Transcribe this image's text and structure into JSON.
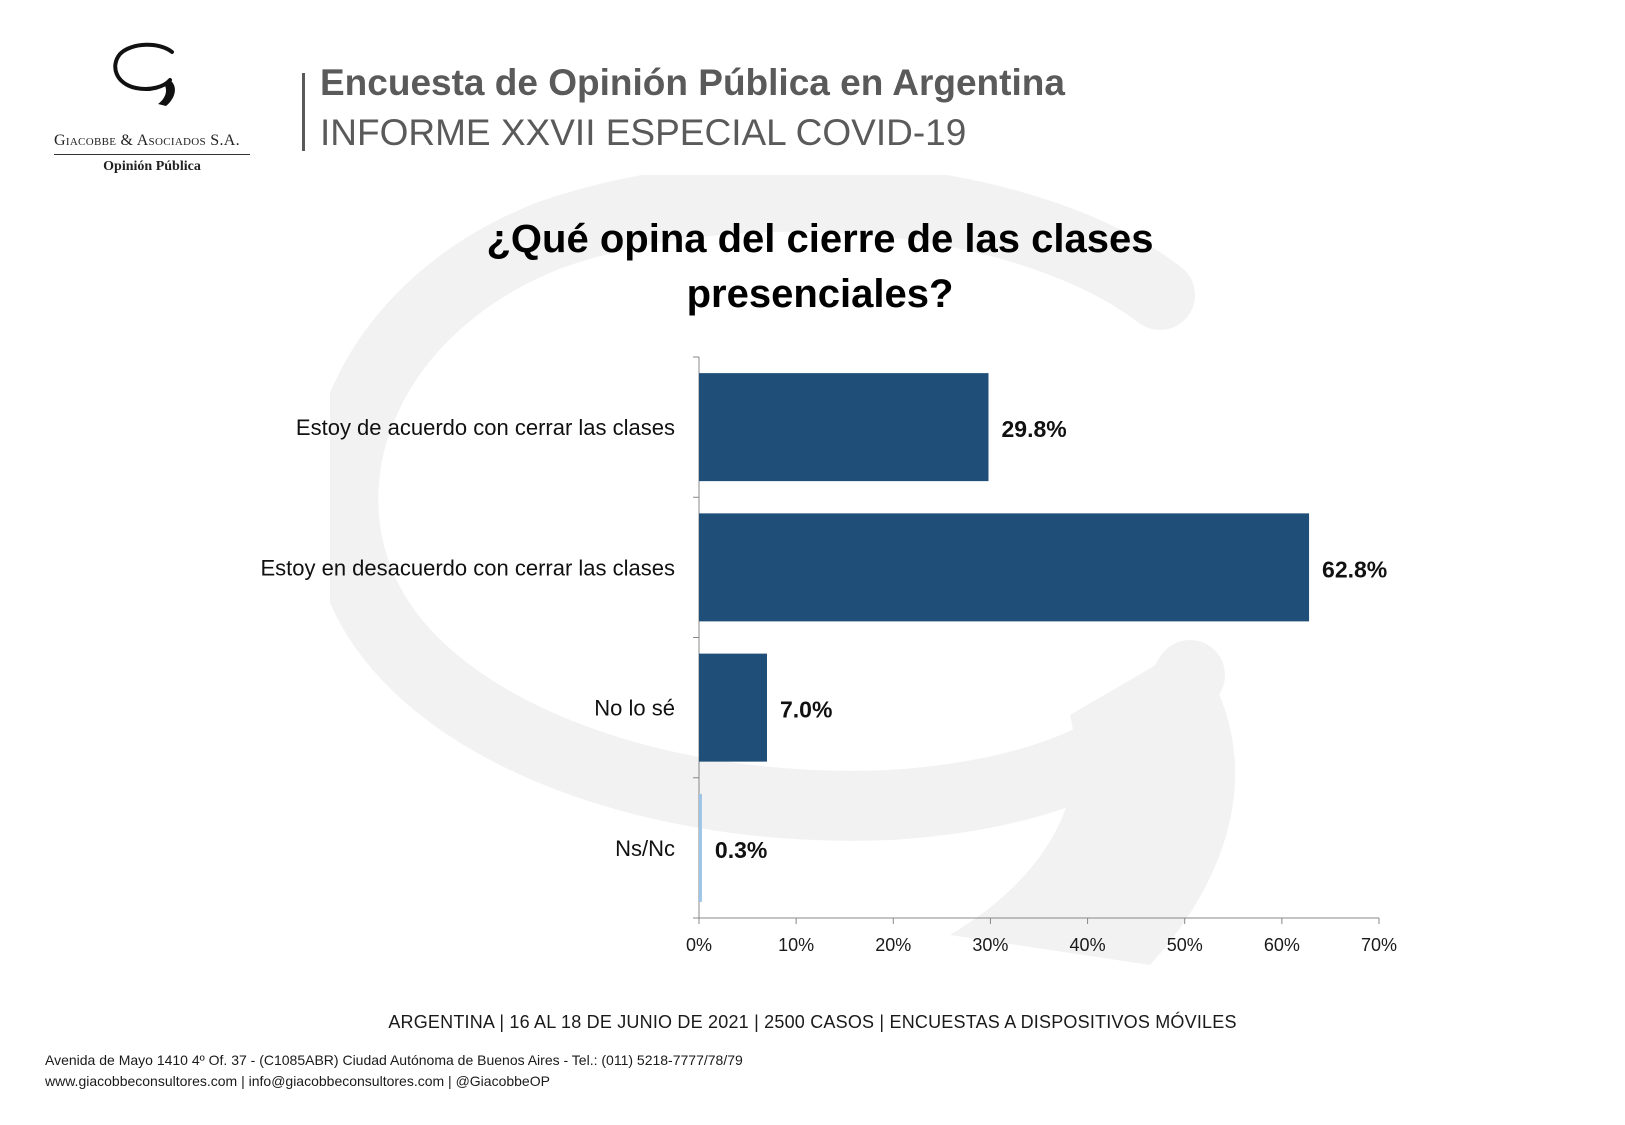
{
  "logo": {
    "company": "Giacobbe & Asociados S.A.",
    "subtitle": "Opinión Pública"
  },
  "header": {
    "title": "Encuesta de Opinión Pública en Argentina",
    "subtitle": "INFORME XXVII ESPECIAL COVID-19"
  },
  "colors": {
    "bar": "#1f4e79",
    "bar_light": "#9dc3e6",
    "header_text": "#5a5a5a"
  },
  "chart_data": {
    "type": "bar",
    "orientation": "horizontal",
    "title_lines": [
      "¿Qué opina del cierre de las clases",
      "presenciales?"
    ],
    "categories": [
      "Estoy de acuerdo con cerrar las clases",
      "Estoy en desacuerdo con cerrar las clases",
      "No lo sé",
      "Ns/Nc"
    ],
    "values": [
      29.8,
      62.8,
      7.0,
      0.3
    ],
    "data_labels": [
      "29.8%",
      "62.8%",
      "7.0%",
      "0.3%"
    ],
    "xlim": [
      0,
      70
    ],
    "x_ticks": [
      0,
      10,
      20,
      30,
      40,
      50,
      60,
      70
    ],
    "x_tick_labels": [
      "0%",
      "10%",
      "20%",
      "30%",
      "40%",
      "50%",
      "60%",
      "70%"
    ],
    "grid": false,
    "legend": "none"
  },
  "footer": {
    "survey_info": "ARGENTINA | 16 AL 18 DE JUNIO DE 2021 | 2500 CASOS | ENCUESTAS A DISPOSITIVOS MÓVILES",
    "address": "Avenida de Mayo 1410 4º Of. 37 - (C1085ABR) Ciudad Autónoma de Buenos Aires - Tel.: (011) 5218-7777/78/79",
    "contacts": "www.giacobbeconsultores.com | info@giacobbeconsultores.com | @GiacobbeOP"
  }
}
